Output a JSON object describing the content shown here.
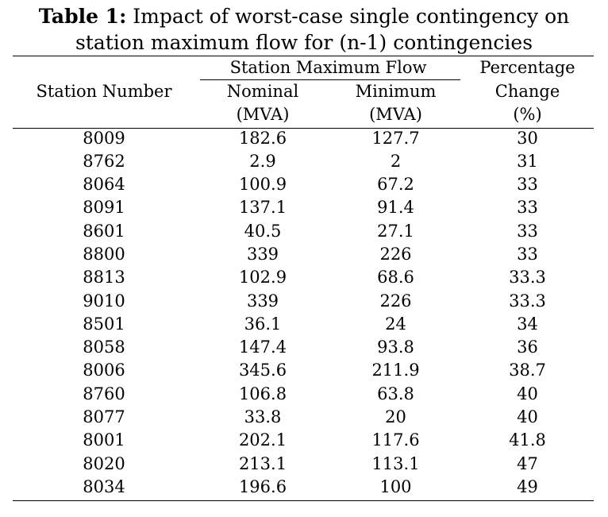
{
  "caption": {
    "label": "Table 1:",
    "text_line1": " Impact of worst-case single contingency on",
    "text_line2": "station maximum flow for (n-1) contingencies"
  },
  "header": {
    "station_number": "Station Number",
    "group_label": "Station Maximum Flow",
    "nominal": [
      "Nominal",
      "(MVA)"
    ],
    "minimum": [
      "Minimum",
      "(MVA)"
    ],
    "percentage": [
      "Percentage",
      "Change",
      "(%)"
    ]
  },
  "rows": [
    {
      "station": "8009",
      "nominal": "182.6",
      "minimum": "127.7",
      "change": "30"
    },
    {
      "station": "8762",
      "nominal": "2.9",
      "minimum": "2",
      "change": "31"
    },
    {
      "station": "8064",
      "nominal": "100.9",
      "minimum": "67.2",
      "change": "33"
    },
    {
      "station": "8091",
      "nominal": "137.1",
      "minimum": "91.4",
      "change": "33"
    },
    {
      "station": "8601",
      "nominal": "40.5",
      "minimum": "27.1",
      "change": "33"
    },
    {
      "station": "8800",
      "nominal": "339",
      "minimum": "226",
      "change": "33"
    },
    {
      "station": "8813",
      "nominal": "102.9",
      "minimum": "68.6",
      "change": "33.3"
    },
    {
      "station": "9010",
      "nominal": "339",
      "minimum": "226",
      "change": "33.3"
    },
    {
      "station": "8501",
      "nominal": "36.1",
      "minimum": "24",
      "change": "34"
    },
    {
      "station": "8058",
      "nominal": "147.4",
      "minimum": "93.8",
      "change": "36"
    },
    {
      "station": "8006",
      "nominal": "345.6",
      "minimum": "211.9",
      "change": "38.7"
    },
    {
      "station": "8760",
      "nominal": "106.8",
      "minimum": "63.8",
      "change": "40"
    },
    {
      "station": "8077",
      "nominal": "33.8",
      "minimum": "20",
      "change": "40"
    },
    {
      "station": "8001",
      "nominal": "202.1",
      "minimum": "117.6",
      "change": "41.8"
    },
    {
      "station": "8020",
      "nominal": "213.1",
      "minimum": "113.1",
      "change": "47"
    },
    {
      "station": "8034",
      "nominal": "196.6",
      "minimum": "100",
      "change": "49"
    }
  ]
}
